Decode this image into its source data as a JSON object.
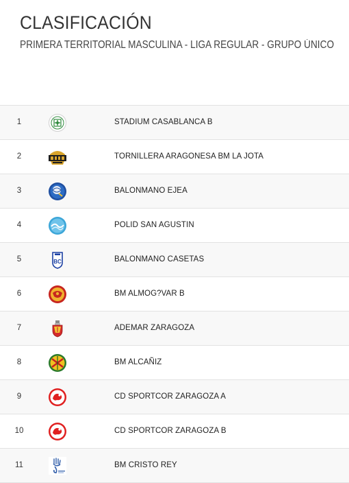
{
  "header": {
    "title": "CLASIFICACIÓN",
    "subtitle": "PRIMERA TERRITORIAL MASCULINA - LIGA REGULAR - GRUPO ÚNICO"
  },
  "standings": [
    {
      "position": "1",
      "team": "STADIUM CASABLANCA B",
      "logo": "stadium-casablanca-logo-icon"
    },
    {
      "position": "2",
      "team": "TORNILLERA ARAGONESA BM LA JOTA",
      "logo": "la-jota-logo-icon"
    },
    {
      "position": "3",
      "team": "BALONMANO EJEA",
      "logo": "balonmano-ejea-logo-icon"
    },
    {
      "position": "4",
      "team": "POLID SAN AGUSTIN",
      "logo": "polid-san-agustin-logo-icon"
    },
    {
      "position": "5",
      "team": "BALONMANO CASETAS",
      "logo": "balonmano-casetas-logo-icon"
    },
    {
      "position": "6",
      "team": "BM ALMOG?VAR B",
      "logo": "bm-almogavar-logo-icon"
    },
    {
      "position": "7",
      "team": "ADEMAR ZARAGOZA",
      "logo": "ademar-zaragoza-logo-icon"
    },
    {
      "position": "8",
      "team": "BM ALCAÑIZ",
      "logo": "bm-alcaniz-logo-icon"
    },
    {
      "position": "9",
      "team": "CD SPORTCOR ZARAGOZA A",
      "logo": "cd-sportcor-logo-icon"
    },
    {
      "position": "10",
      "team": "CD SPORTCOR ZARAGOZA B",
      "logo": "cd-sportcor-logo-icon"
    },
    {
      "position": "11",
      "team": "BM CRISTO REY",
      "logo": "bm-cristo-rey-logo-icon"
    }
  ]
}
